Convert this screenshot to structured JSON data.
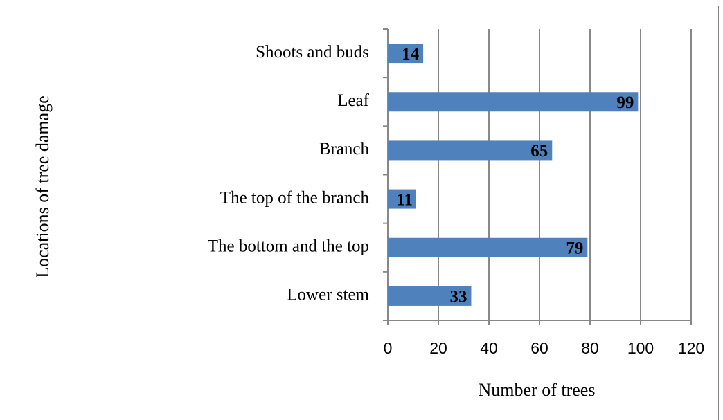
{
  "chart_data": {
    "type": "barh",
    "categories": [
      "Shoots and buds",
      "Leaf",
      "Branch",
      "The top of the branch",
      "The bottom and the top",
      "Lower stem"
    ],
    "values": [
      14,
      99,
      65,
      11,
      79,
      33
    ],
    "color": "#4f81bd",
    "xlabel": "Number of trees",
    "ylabel": "Locations of tree damage",
    "xlim": [
      0,
      120
    ],
    "xticks": [
      0,
      20,
      40,
      60,
      80,
      100,
      120
    ],
    "grid": true
  }
}
